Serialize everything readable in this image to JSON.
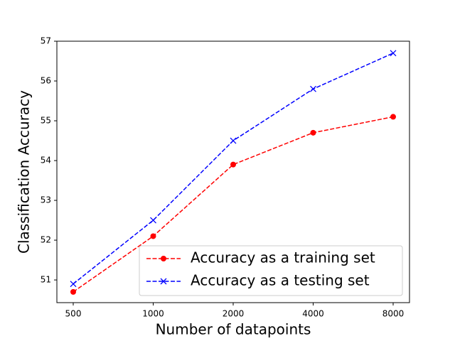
{
  "chart_data": {
    "type": "line",
    "x_label": "Number of datapoints",
    "y_label": "Classification Accuracy",
    "categories": [
      "500",
      "1000",
      "2000",
      "4000",
      "8000"
    ],
    "series": [
      {
        "name": "Accuracy as a training set",
        "color": "#ff0000",
        "marker": "circle",
        "values": [
          50.7,
          52.1,
          53.9,
          54.7,
          55.1
        ]
      },
      {
        "name": "Accuracy as a testing set",
        "color": "#0000ff",
        "marker": "x",
        "values": [
          50.9,
          52.5,
          54.5,
          55.8,
          56.7
        ]
      }
    ],
    "ylim": [
      50.43,
      57
    ],
    "yticks": [
      51,
      52,
      53,
      54,
      55,
      56,
      57
    ],
    "legend": "lower right",
    "grid": false
  }
}
